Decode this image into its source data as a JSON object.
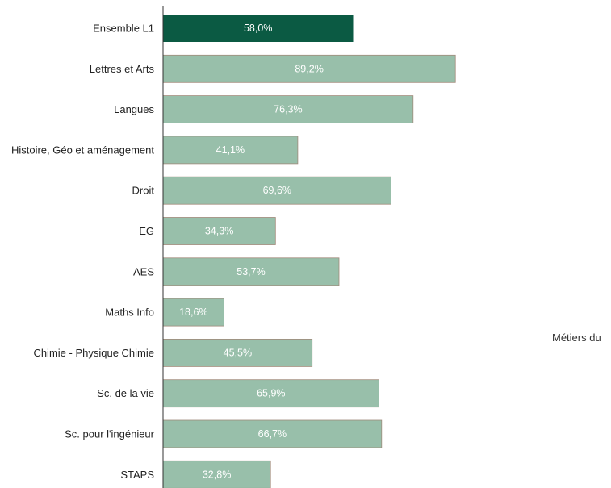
{
  "chart_data": {
    "type": "bar",
    "orientation": "horizontal",
    "categories": [
      "Ensemble L1",
      "Lettres et Arts",
      "Langues",
      "Histoire, Géo et aménagement",
      "Droit",
      "EG",
      "AES",
      "Maths Info",
      "Chimie - Physique Chimie",
      "Sc. de la vie",
      "Sc. pour l'ingénieur",
      "STAPS"
    ],
    "values": [
      58.0,
      89.2,
      76.3,
      41.1,
      69.6,
      34.3,
      53.7,
      18.6,
      45.5,
      65.9,
      66.7,
      32.8
    ],
    "value_labels": [
      "58,0%",
      "89,2%",
      "76,3%",
      "41,1%",
      "69,6%",
      "34,3%",
      "53,7%",
      "18,6%",
      "45,5%",
      "65,9%",
      "66,7%",
      "32,8%"
    ],
    "highlight_index": 0,
    "colors": {
      "highlight": "#0b5a43",
      "bar": "#98bfaa",
      "bar_stroke": "#a08a7a",
      "axis": "#333333"
    },
    "title": "",
    "xlabel": "",
    "ylabel": "",
    "grid": false
  },
  "side_note": "Métiers du"
}
